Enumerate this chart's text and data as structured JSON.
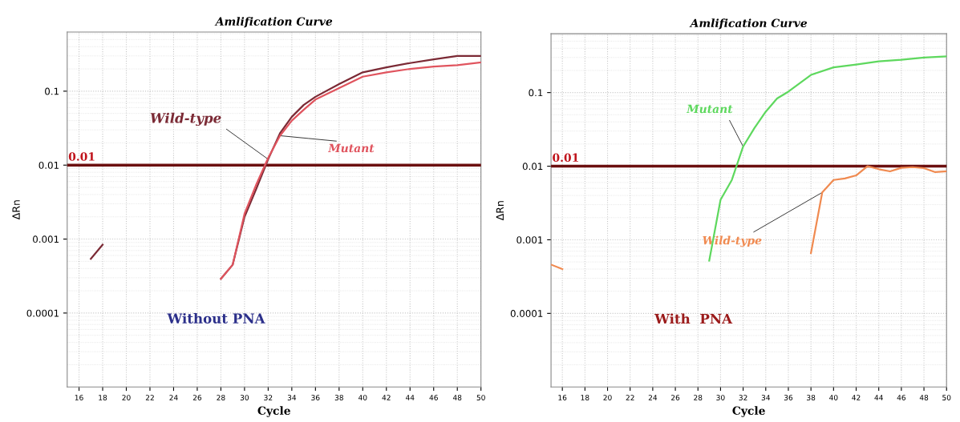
{
  "chart_data": [
    {
      "type": "line",
      "title": "Amlification Curve",
      "xlabel": "Cycle",
      "ylabel": "ΔRn",
      "log": "y",
      "grid": true,
      "legend": false,
      "xlim": [
        15,
        50
      ],
      "xticks": [
        16,
        18,
        20,
        22,
        24,
        26,
        28,
        30,
        32,
        34,
        36,
        38,
        40,
        42,
        44,
        46,
        48,
        50
      ],
      "ylim": [
        1e-05,
        0.63
      ],
      "yticks": [
        0.0001,
        0.001,
        0.01,
        0.1
      ],
      "ref_lines": [
        {
          "axis": "y",
          "value": 0.01,
          "label": "0.01",
          "color": "#6b0f0f"
        }
      ],
      "annotations": [
        "Without PNA"
      ],
      "series": [
        {
          "name": "Wild-type",
          "color": "#7b2a35",
          "x": [
            17,
            18,
            19,
            28,
            29,
            30,
            31,
            32,
            33,
            34,
            35,
            36,
            38,
            40,
            42,
            44,
            46,
            48,
            50
          ],
          "values": [
            0.00054,
            0.00084,
            null,
            0.00029,
            0.00045,
            0.002,
            0.0048,
            0.012,
            0.027,
            0.045,
            0.065,
            0.084,
            0.125,
            0.18,
            0.21,
            0.24,
            0.27,
            0.3,
            0.3
          ]
        },
        {
          "name": "Mutant",
          "color": "#e0545e",
          "x": [
            28,
            29,
            30,
            31,
            32,
            33,
            34,
            35,
            36,
            38,
            40,
            42,
            44,
            46,
            48,
            50
          ],
          "values": [
            0.00029,
            0.00045,
            0.0022,
            0.0055,
            0.0125,
            0.025,
            0.04,
            0.056,
            0.077,
            0.11,
            0.157,
            0.18,
            0.2,
            0.215,
            0.225,
            0.245
          ]
        }
      ]
    },
    {
      "type": "line",
      "title": "Amlification Curve",
      "xlabel": "Cycle",
      "ylabel": "ΔRn",
      "log": "y",
      "grid": true,
      "legend": false,
      "xlim": [
        15,
        50
      ],
      "xticks": [
        16,
        18,
        20,
        22,
        24,
        26,
        28,
        30,
        32,
        34,
        36,
        38,
        40,
        42,
        44,
        46,
        48,
        50
      ],
      "ylim": [
        1e-05,
        0.63
      ],
      "yticks": [
        0.0001,
        0.001,
        0.01,
        0.1
      ],
      "ref_lines": [
        {
          "axis": "y",
          "value": 0.01,
          "label": "0.01",
          "color": "#6b0f0f"
        }
      ],
      "annotations": [
        "With  PNA"
      ],
      "series": [
        {
          "name": "Mutant",
          "color": "#5ed85e",
          "x": [
            29,
            30,
            31,
            32,
            33,
            34,
            35,
            36,
            38,
            40,
            42,
            44,
            46,
            48,
            50
          ],
          "values": [
            0.00052,
            0.0035,
            0.0065,
            0.0185,
            0.033,
            0.055,
            0.083,
            0.103,
            0.174,
            0.22,
            0.24,
            0.266,
            0.28,
            0.3,
            0.31
          ]
        },
        {
          "name": "Wild-type",
          "color": "#f08a50",
          "x": [
            15,
            16,
            17,
            38,
            39,
            40,
            41,
            42,
            43,
            44,
            45,
            46,
            47,
            48,
            49,
            50
          ],
          "values": [
            0.00046,
            0.0004,
            null,
            0.00066,
            0.0044,
            0.0065,
            0.0068,
            0.0075,
            0.01,
            0.0091,
            0.0085,
            0.0095,
            0.0097,
            0.0094,
            0.0083,
            0.0085
          ]
        }
      ]
    }
  ]
}
